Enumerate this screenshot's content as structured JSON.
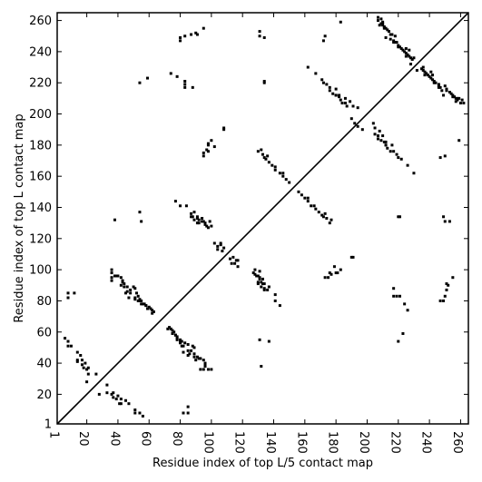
{
  "chart_data": {
    "type": "scatter",
    "xlabel": "Residue index of top L/5 contact map",
    "ylabel": "Residue index of top L contact map",
    "xlim": [
      1,
      265
    ],
    "ylim": [
      1,
      265
    ],
    "xticks": [
      1,
      20,
      40,
      60,
      80,
      100,
      120,
      140,
      160,
      180,
      200,
      220,
      240,
      260
    ],
    "yticks": [
      1,
      20,
      40,
      60,
      80,
      100,
      120,
      140,
      160,
      180,
      200,
      220,
      240,
      260
    ],
    "grid": false,
    "diagonal": true,
    "marker_color": "#000000",
    "upper_points": [
      [
        80,
        247
      ],
      [
        80,
        249
      ],
      [
        83,
        250
      ],
      [
        87,
        251
      ],
      [
        90,
        252
      ],
      [
        95,
        255
      ],
      [
        91,
        251
      ],
      [
        131,
        253
      ],
      [
        131,
        250
      ],
      [
        134,
        249
      ],
      [
        172,
        247
      ],
      [
        173,
        250
      ],
      [
        183,
        259
      ],
      [
        207,
        262
      ],
      [
        207,
        260
      ],
      [
        209,
        261
      ],
      [
        209,
        258
      ],
      [
        210,
        259
      ],
      [
        210,
        257
      ],
      [
        211,
        256
      ],
      [
        212,
        255
      ],
      [
        213,
        254
      ],
      [
        214,
        253
      ],
      [
        212,
        249
      ],
      [
        215,
        248
      ],
      [
        216,
        251
      ],
      [
        218,
        250
      ],
      [
        217,
        246
      ],
      [
        219,
        246
      ],
      [
        220,
        244
      ],
      [
        221,
        243
      ],
      [
        222,
        242
      ],
      [
        223,
        241
      ],
      [
        224,
        240
      ],
      [
        225,
        239
      ],
      [
        226,
        238
      ],
      [
        227,
        237
      ],
      [
        228,
        236
      ],
      [
        225,
        242
      ],
      [
        227,
        241
      ],
      [
        229,
        235
      ],
      [
        230,
        236
      ],
      [
        54,
        220
      ],
      [
        59,
        223
      ],
      [
        74,
        226
      ],
      [
        78,
        224
      ],
      [
        83,
        219
      ],
      [
        83,
        221
      ],
      [
        88,
        217
      ],
      [
        83,
        217
      ],
      [
        134,
        221
      ],
      [
        134,
        220
      ],
      [
        162,
        230
      ],
      [
        167,
        226
      ],
      [
        171,
        222
      ],
      [
        172,
        220
      ],
      [
        174,
        219
      ],
      [
        176,
        217
      ],
      [
        176,
        215
      ],
      [
        178,
        213
      ],
      [
        180,
        212
      ],
      [
        182,
        211
      ],
      [
        183,
        209
      ],
      [
        184,
        207
      ],
      [
        187,
        205
      ],
      [
        191,
        205
      ],
      [
        194,
        204
      ],
      [
        186,
        210
      ],
      [
        189,
        208
      ],
      [
        232,
        228
      ],
      [
        237,
        225
      ],
      [
        243,
        220
      ],
      [
        246,
        218
      ],
      [
        247,
        217
      ],
      [
        251,
        215
      ],
      [
        255,
        211
      ],
      [
        257,
        208
      ],
      [
        258,
        210
      ],
      [
        98,
        181
      ],
      [
        100,
        183
      ],
      [
        97,
        177
      ],
      [
        95,
        175
      ],
      [
        95,
        173
      ],
      [
        102,
        179
      ],
      [
        108,
        190
      ],
      [
        130,
        176
      ],
      [
        132,
        177
      ],
      [
        133,
        174
      ],
      [
        134,
        172
      ],
      [
        136,
        173
      ],
      [
        135,
        171
      ],
      [
        137,
        169
      ],
      [
        139,
        167
      ],
      [
        141,
        166
      ],
      [
        141,
        164
      ],
      [
        144,
        162
      ],
      [
        146,
        160
      ],
      [
        148,
        158
      ],
      [
        150,
        156
      ],
      [
        190,
        197
      ],
      [
        194,
        192
      ],
      [
        207,
        186
      ],
      [
        207,
        184
      ],
      [
        212,
        182
      ],
      [
        212,
        180
      ],
      [
        216,
        180
      ],
      [
        162,
        146
      ],
      [
        77,
        144
      ],
      [
        80,
        141
      ],
      [
        84,
        141
      ],
      [
        87,
        136
      ],
      [
        87,
        134
      ],
      [
        89,
        137
      ],
      [
        89,
        132
      ],
      [
        91,
        134
      ],
      [
        92,
        132
      ],
      [
        91,
        130
      ],
      [
        94,
        133
      ],
      [
        95,
        131
      ],
      [
        96,
        129
      ],
      [
        97,
        128
      ],
      [
        99,
        131
      ],
      [
        98,
        127
      ],
      [
        100,
        128
      ],
      [
        38,
        132
      ],
      [
        54,
        137
      ],
      [
        55,
        131
      ],
      [
        102,
        117
      ],
      [
        104,
        115
      ],
      [
        104,
        113
      ],
      [
        106,
        117
      ],
      [
        108,
        114
      ],
      [
        112,
        107
      ],
      [
        116,
        106
      ],
      [
        130,
        96
      ],
      [
        131,
        94
      ],
      [
        130,
        92
      ],
      [
        133,
        91
      ],
      [
        134,
        88
      ],
      [
        36,
        100
      ],
      [
        36,
        98
      ],
      [
        39,
        96
      ],
      [
        42,
        95
      ],
      [
        43,
        93
      ],
      [
        44,
        91
      ],
      [
        46,
        89
      ],
      [
        48,
        87
      ],
      [
        50,
        89
      ],
      [
        51,
        88
      ],
      [
        52,
        85
      ],
      [
        53,
        83
      ],
      [
        54,
        81
      ],
      [
        55,
        80
      ],
      [
        57,
        78
      ],
      [
        58,
        77
      ],
      [
        60,
        76
      ],
      [
        61,
        75
      ],
      [
        62,
        74
      ],
      [
        63,
        73
      ],
      [
        36,
        93
      ],
      [
        42,
        90
      ],
      [
        45,
        85
      ],
      [
        47,
        82
      ],
      [
        51,
        81
      ],
      [
        53,
        80
      ],
      [
        56,
        78
      ],
      [
        59,
        75
      ],
      [
        8,
        85
      ],
      [
        12,
        85
      ],
      [
        8,
        82
      ],
      [
        72,
        62
      ],
      [
        77,
        58
      ],
      [
        78,
        55
      ],
      [
        80,
        54
      ],
      [
        82,
        51
      ],
      [
        85,
        48
      ],
      [
        86,
        46
      ],
      [
        89,
        44
      ],
      [
        92,
        43
      ],
      [
        96,
        40
      ],
      [
        96,
        38
      ],
      [
        95,
        36
      ],
      [
        6,
        56
      ],
      [
        8,
        54
      ],
      [
        8,
        51
      ],
      [
        10,
        51
      ],
      [
        14,
        47
      ],
      [
        16,
        45
      ],
      [
        17,
        42
      ],
      [
        19,
        40
      ],
      [
        21,
        37
      ],
      [
        14,
        41
      ],
      [
        21,
        33
      ],
      [
        26,
        33
      ],
      [
        20,
        28
      ],
      [
        36,
        20
      ],
      [
        37,
        18
      ],
      [
        39,
        17
      ],
      [
        42,
        14
      ],
      [
        176,
        98
      ],
      [
        180,
        98
      ],
      [
        191,
        108
      ]
    ]
  }
}
